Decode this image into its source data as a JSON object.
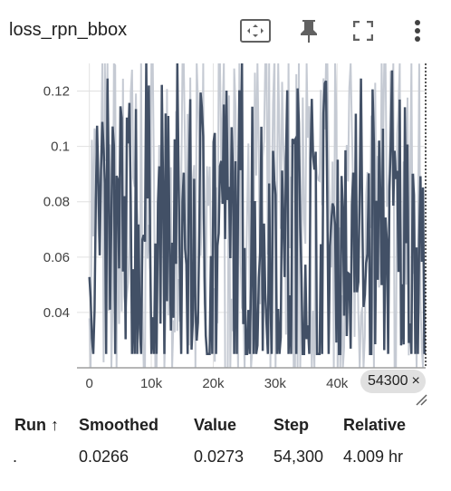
{
  "card": {
    "title": "loss_rpn_bbox",
    "icons": [
      "fit-domain-icon",
      "pin-icon",
      "fullscreen-icon",
      "more-vert-icon"
    ]
  },
  "hover": {
    "step_label": "54300",
    "close_glyph": "×"
  },
  "table": {
    "headers": {
      "run": "Run ↑",
      "smoothed": "Smoothed",
      "value": "Value",
      "step": "Step",
      "relative": "Relative"
    },
    "row": {
      "run": ".",
      "smoothed": "0.0266",
      "value": "0.0273",
      "step": "54,300",
      "relative": "4.009 hr"
    }
  },
  "colors": {
    "raw_series": "#c5cad3",
    "smoothed_series": "#425066",
    "grid": "#e0e0e0",
    "axis": "#9e9e9e"
  },
  "chart_data": {
    "type": "line",
    "title": "loss_rpn_bbox",
    "xlabel": "",
    "ylabel": "",
    "xlim": [
      -2000,
      54300
    ],
    "ylim": [
      0.02,
      0.13
    ],
    "x_ticks": [
      0,
      10000,
      20000,
      30000,
      40000
    ],
    "x_tick_labels": [
      "0",
      "10k",
      "20k",
      "30k",
      "40k"
    ],
    "y_ticks": [
      0.04,
      0.06,
      0.08,
      0.1,
      0.12
    ],
    "y_tick_labels": [
      "0.04",
      "0.06",
      "0.08",
      "0.1",
      "0.12"
    ],
    "series": [
      {
        "name": "raw",
        "x_start": 0,
        "x_end": 54300,
        "approx_min": 0.02,
        "approx_max": 0.13,
        "approx_mean": 0.07,
        "last_value": 0.0273
      },
      {
        "name": "smoothed",
        "x_start": 0,
        "x_end": 54300,
        "approx_min": 0.025,
        "approx_max": 0.13,
        "approx_mean": 0.065,
        "last_value": 0.0266
      }
    ],
    "hover_step": 54300
  }
}
